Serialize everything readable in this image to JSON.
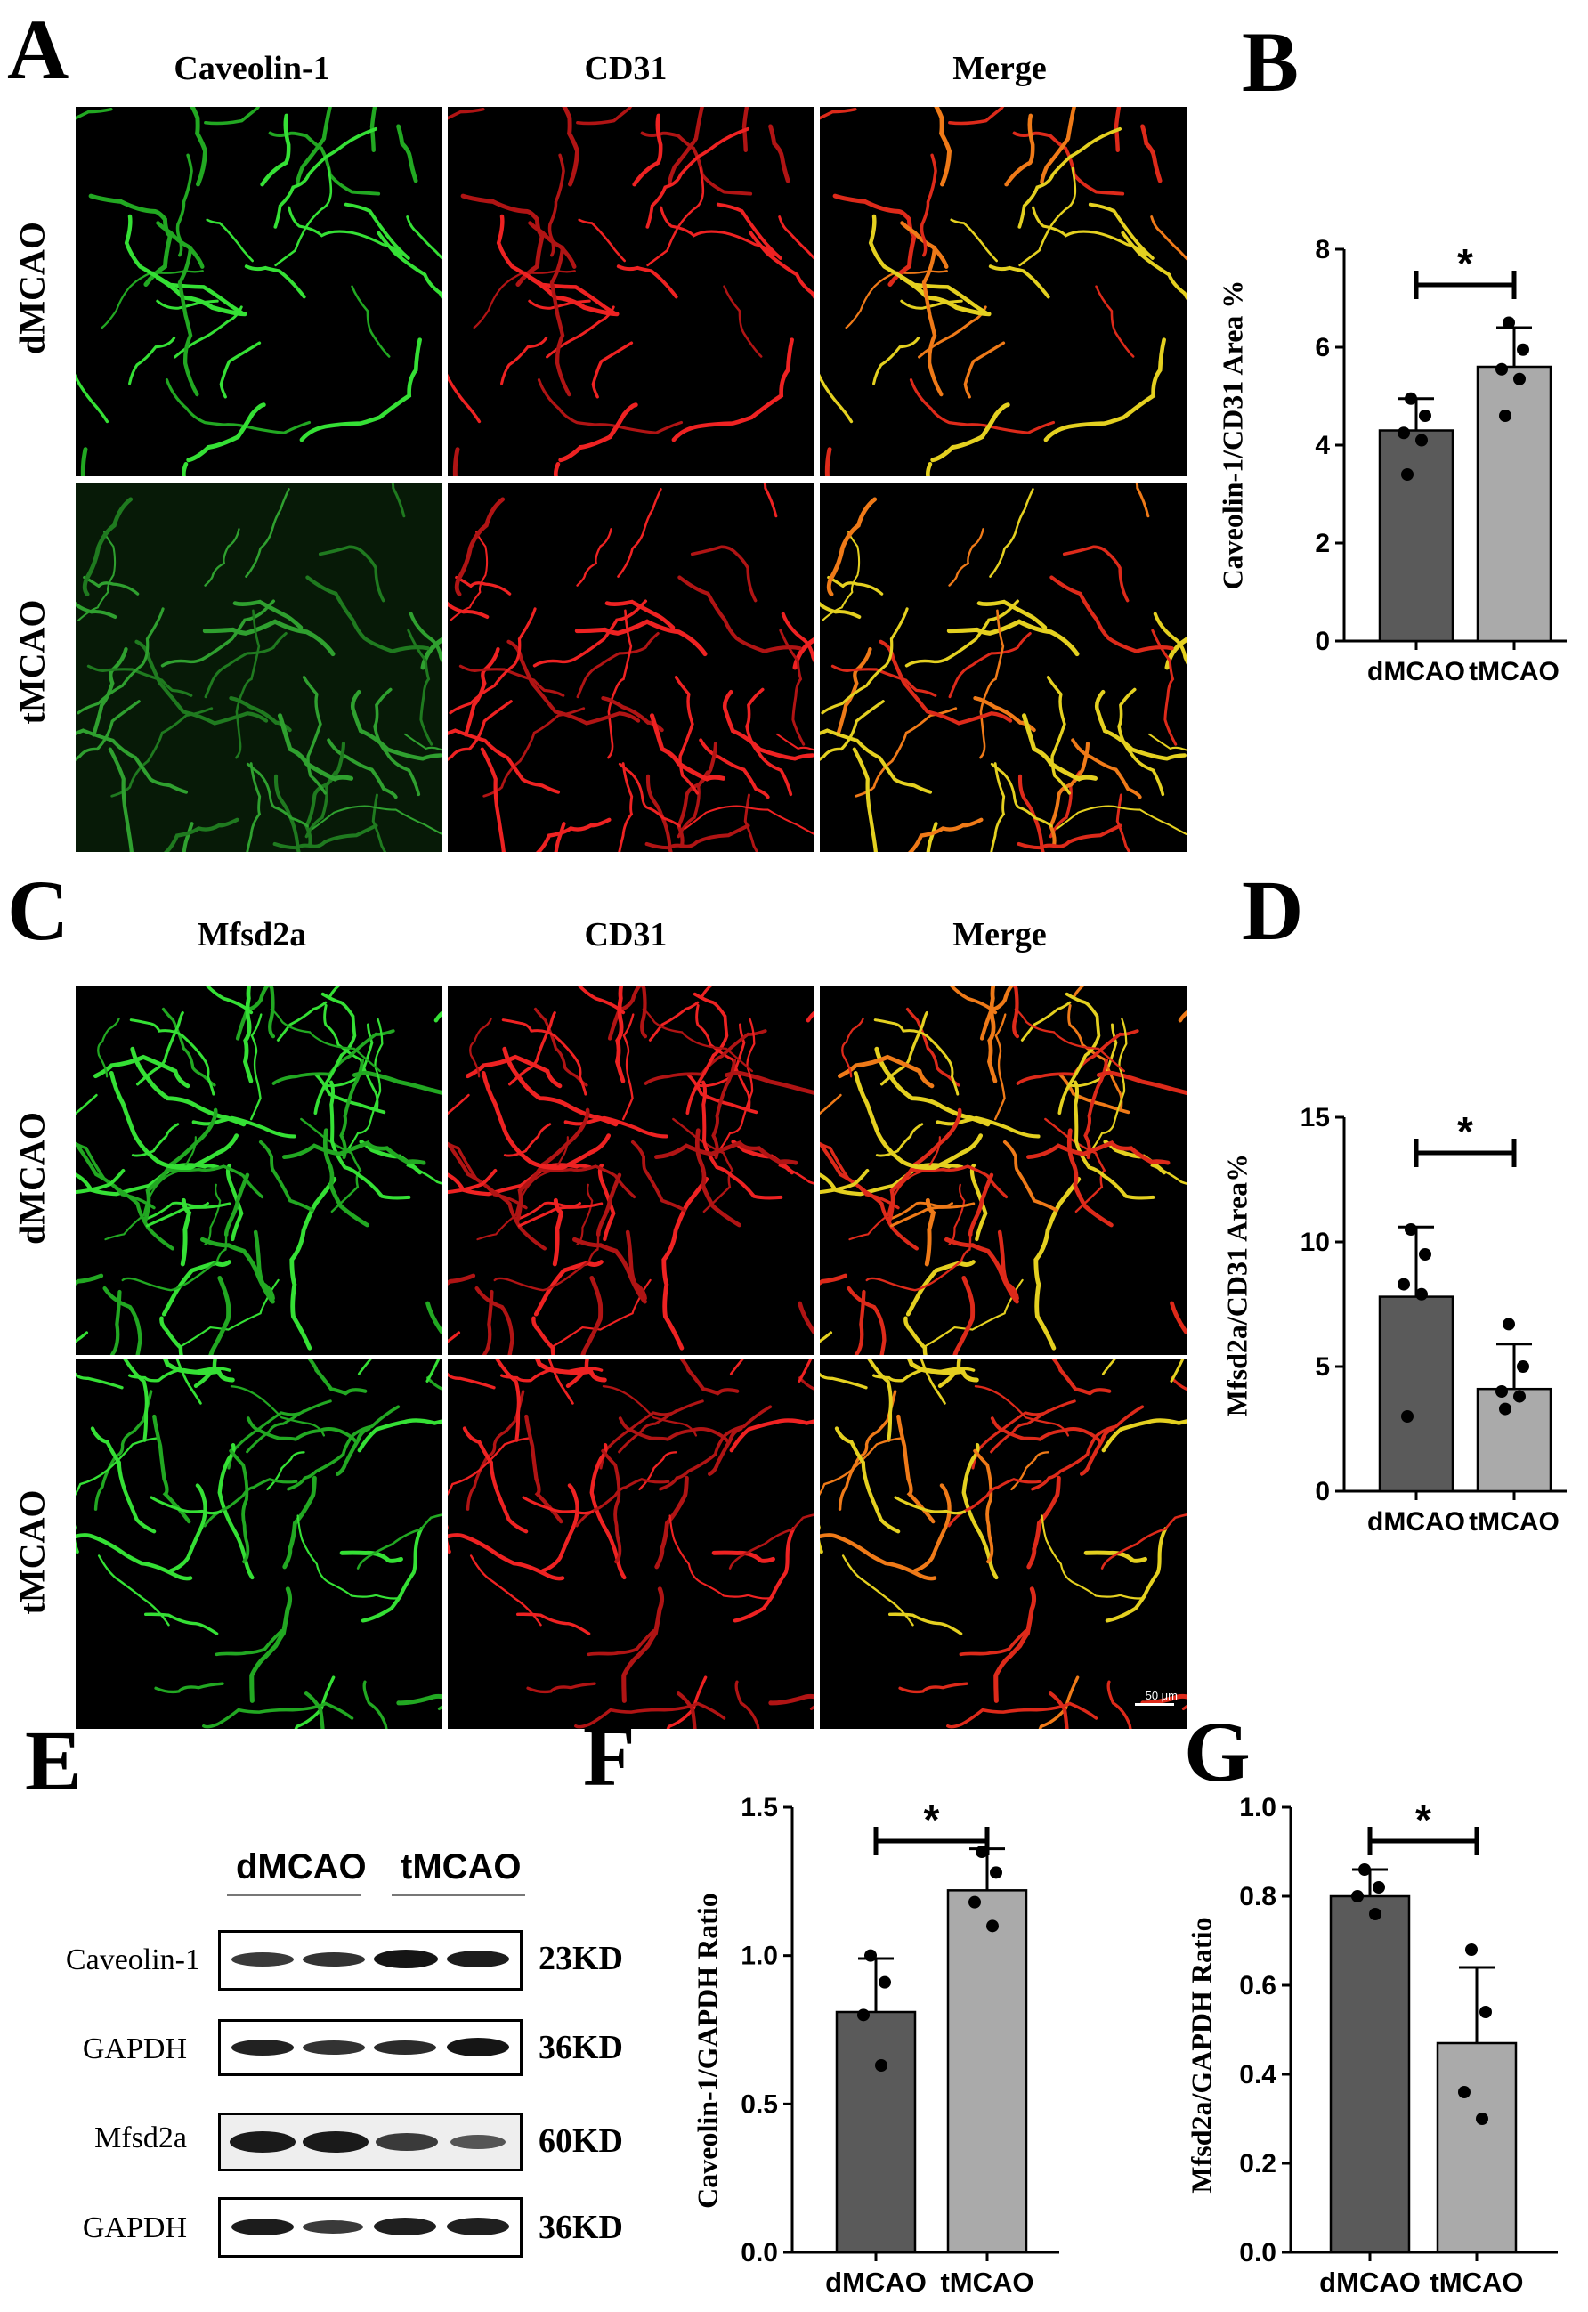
{
  "panels": {
    "A": "A",
    "B": "B",
    "C": "C",
    "D": "D",
    "E": "E",
    "F": "F",
    "G": "G"
  },
  "panel_a": {
    "columns": [
      "Caveolin-1",
      "CD31",
      "Merge"
    ],
    "rows": [
      "dMCAO",
      "tMCAO"
    ]
  },
  "panel_c": {
    "columns": [
      "Mfsd2a",
      "CD31",
      "Merge"
    ],
    "rows": [
      "dMCAO",
      "tMCAO"
    ],
    "scale_bar": "50 μm"
  },
  "western_blot": {
    "groups": [
      "dMCAO",
      "tMCAO"
    ],
    "rows": [
      {
        "label": "Caveolin-1",
        "kd": "23KD"
      },
      {
        "label": "GAPDH",
        "kd": "36KD"
      },
      {
        "label": "Mfsd2a",
        "kd": "60KD"
      },
      {
        "label": "GAPDH",
        "kd": "36KD"
      }
    ]
  },
  "colors": {
    "dark_bar": "#5a5a5a",
    "light_bar": "#aaaaaa",
    "green": "#2fd12f",
    "red": "#e02020"
  },
  "chart_data": [
    {
      "panel": "B",
      "type": "bar",
      "categories": [
        "dMCAO",
        "tMCAO"
      ],
      "values": [
        4.3,
        5.6
      ],
      "errors": [
        0.65,
        0.8
      ],
      "points": [
        [
          4.95,
          4.6,
          4.25,
          4.1,
          3.4
        ],
        [
          6.5,
          5.95,
          5.55,
          5.35,
          4.6
        ]
      ],
      "ylabel": "Caveolin-1/CD31 Area %",
      "ylim": [
        0,
        8
      ],
      "yticks": [
        0,
        2,
        4,
        6,
        8
      ],
      "significance": "*"
    },
    {
      "panel": "D",
      "type": "bar",
      "categories": [
        "dMCAO",
        "tMCAO"
      ],
      "values": [
        7.8,
        4.1
      ],
      "errors": [
        2.8,
        1.8
      ],
      "points": [
        [
          10.5,
          9.5,
          8.3,
          7.9,
          3.0
        ],
        [
          6.7,
          5.0,
          4.0,
          3.8,
          3.3
        ]
      ],
      "ylabel": "Mfsd2a/CD31 Area%",
      "ylim": [
        0,
        15
      ],
      "yticks": [
        0,
        5,
        10,
        15
      ],
      "significance": "*"
    },
    {
      "panel": "F",
      "type": "bar",
      "categories": [
        "dMCAO",
        "tMCAO"
      ],
      "values": [
        0.81,
        1.22
      ],
      "errors": [
        0.18,
        0.14
      ],
      "points": [
        [
          1.0,
          0.91,
          0.8,
          0.63
        ],
        [
          1.35,
          1.28,
          1.18,
          1.1
        ]
      ],
      "ylabel": "Caveolin-1/GAPDH Ratio",
      "ylim": [
        0,
        1.5
      ],
      "yticks": [
        0.0,
        0.5,
        1.0,
        1.5
      ],
      "tick_labels": [
        "0.0",
        "0.5",
        "1.0",
        "1.5"
      ],
      "significance": "*"
    },
    {
      "panel": "G",
      "type": "bar",
      "categories": [
        "dMCAO",
        "tMCAO"
      ],
      "values": [
        0.8,
        0.47
      ],
      "errors": [
        0.06,
        0.17
      ],
      "points": [
        [
          0.86,
          0.82,
          0.8,
          0.76
        ],
        [
          0.68,
          0.54,
          0.36,
          0.3
        ]
      ],
      "ylabel": "Mfsd2a/GAPDH Ratio",
      "ylim": [
        0,
        1.0
      ],
      "yticks": [
        0.0,
        0.2,
        0.4,
        0.6,
        0.8,
        1.0
      ],
      "tick_labels": [
        "0.0",
        "0.2",
        "0.4",
        "0.6",
        "0.8",
        "1.0"
      ],
      "significance": "*"
    }
  ]
}
